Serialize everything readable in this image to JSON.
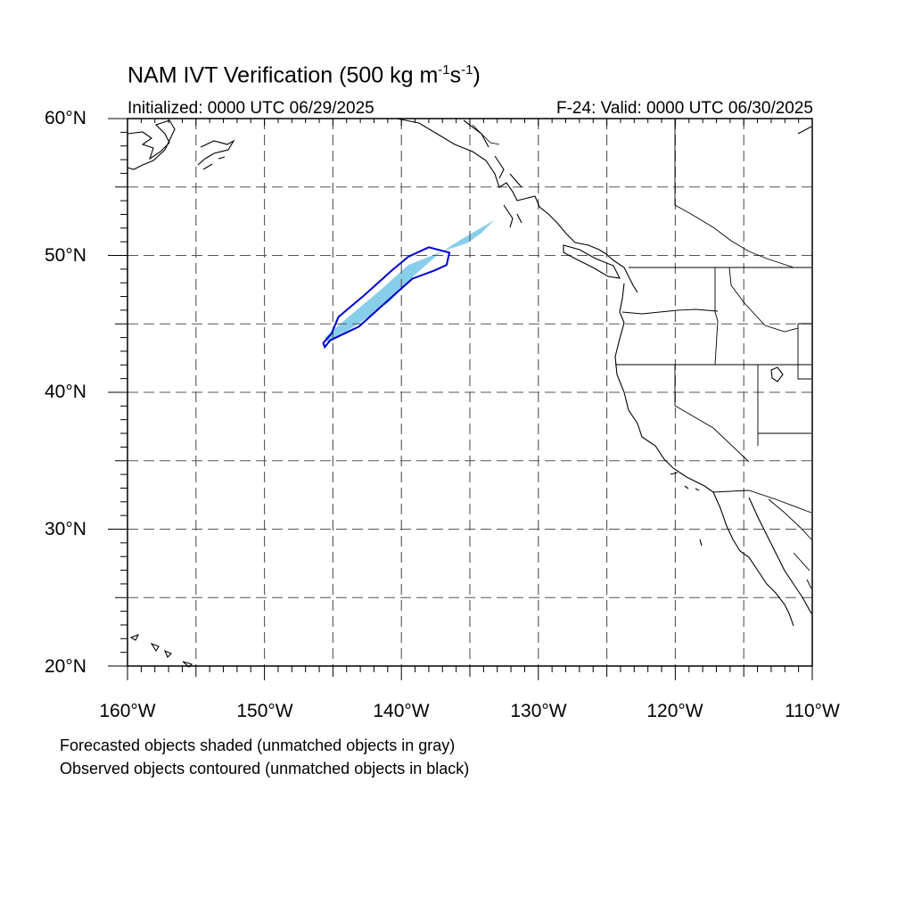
{
  "title": {
    "main": "NAM IVT Verification (500 kg m",
    "exp1": "-1",
    "mid": "s",
    "exp2": "-1",
    "end": ")"
  },
  "subtitle_left": "Initialized: 0000 UTC 06/29/2025",
  "subtitle_right": "F-24: Valid: 0000 UTC 06/30/2025",
  "lat_labels": [
    "60°N",
    "50°N",
    "40°N",
    "30°N",
    "20°N"
  ],
  "lon_labels": [
    "160°W",
    "150°W",
    "140°W",
    "130°W",
    "120°W",
    "110°W"
  ],
  "captions": [
    "Forecasted objects shaded (unmatched objects in gray)",
    "Observed objects contoured (unmatched objects in black)"
  ],
  "map": {
    "lon_range": [
      -160,
      -110
    ],
    "lat_range": [
      20,
      60
    ],
    "grid_lines": "dashed",
    "colors": {
      "forecast_fill": "#87ceeb",
      "observed_contour": "#0000cd",
      "coastline": "#000000"
    },
    "forecast_object": {
      "matched": true,
      "outline": [
        [
          -145.6,
          44
        ],
        [
          -144,
          45.4
        ],
        [
          -141.5,
          47.5
        ],
        [
          -139.5,
          49.3
        ],
        [
          -137,
          50.3
        ],
        [
          -135.2,
          50.9
        ],
        [
          -134.2,
          51.6
        ],
        [
          -133.2,
          52.6
        ],
        [
          -133.7,
          52.3
        ],
        [
          -135.6,
          51.2
        ],
        [
          -137.3,
          50.1
        ],
        [
          -139,
          48.6
        ],
        [
          -140.9,
          46.6
        ],
        [
          -143,
          45.1
        ],
        [
          -145.3,
          43.6
        ]
      ]
    },
    "observed_object": {
      "matched": true,
      "outline": [
        [
          -145.7,
          43.6
        ],
        [
          -145.1,
          44.3
        ],
        [
          -144.6,
          45.5
        ],
        [
          -142.7,
          47.1
        ],
        [
          -140.7,
          48.9
        ],
        [
          -139.5,
          49.9
        ],
        [
          -138,
          50.6
        ],
        [
          -136.5,
          50.2
        ],
        [
          -136.7,
          49.3
        ],
        [
          -137.6,
          48.9
        ],
        [
          -139.2,
          48.3
        ],
        [
          -141,
          46.7
        ],
        [
          -143.1,
          44.8
        ],
        [
          -145.2,
          43.8
        ],
        [
          -145.6,
          43.3
        ]
      ]
    }
  }
}
